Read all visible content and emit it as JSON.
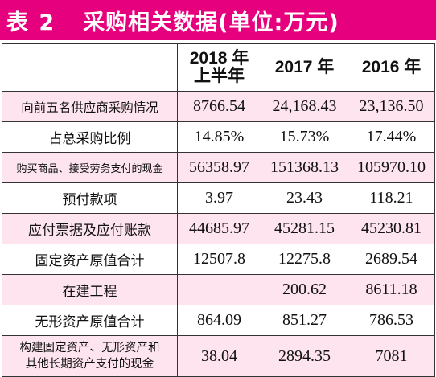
{
  "title": {
    "prefix": "表 2",
    "main": "采购相关数据(单位:万元)"
  },
  "columns": [
    {
      "line1": "2018 年",
      "line2": "上半年"
    },
    {
      "line1": "2017 年",
      "line2": ""
    },
    {
      "line1": "2016 年",
      "line2": ""
    }
  ],
  "rows": [
    {
      "label": "向前五名供应商采购情况",
      "values": [
        "8766.54",
        "24,168.43",
        "23,136.50"
      ]
    },
    {
      "label": "占总采购比例",
      "values": [
        "14.85%",
        "15.73%",
        "17.44%"
      ]
    },
    {
      "label": "购买商品、接受劳务支付的现金",
      "values": [
        "56358.97",
        "151368.13",
        "105970.10"
      ]
    },
    {
      "label": "预付款项",
      "values": [
        "3.97",
        "23.43",
        "118.21"
      ]
    },
    {
      "label": "应付票据及应付账款",
      "values": [
        "44685.97",
        "45281.15",
        "45230.81"
      ]
    },
    {
      "label": "固定资产原值合计",
      "values": [
        "12507.8",
        "12275.8",
        "2689.54"
      ]
    },
    {
      "label": "在建工程",
      "values": [
        "",
        "200.62",
        "8611.18"
      ]
    },
    {
      "label": "无形资产原值合计",
      "values": [
        "864.09",
        "851.27",
        "786.53"
      ]
    },
    {
      "label_line1": "构建固定资产、无形资产和",
      "label_line2": "其他长期资产支付的现金",
      "values": [
        "38.04",
        "2894.35",
        "7081"
      ]
    }
  ],
  "colors": {
    "title_bg": "#e6007e",
    "row_pink": "#fde4ee",
    "border": "#333333"
  }
}
